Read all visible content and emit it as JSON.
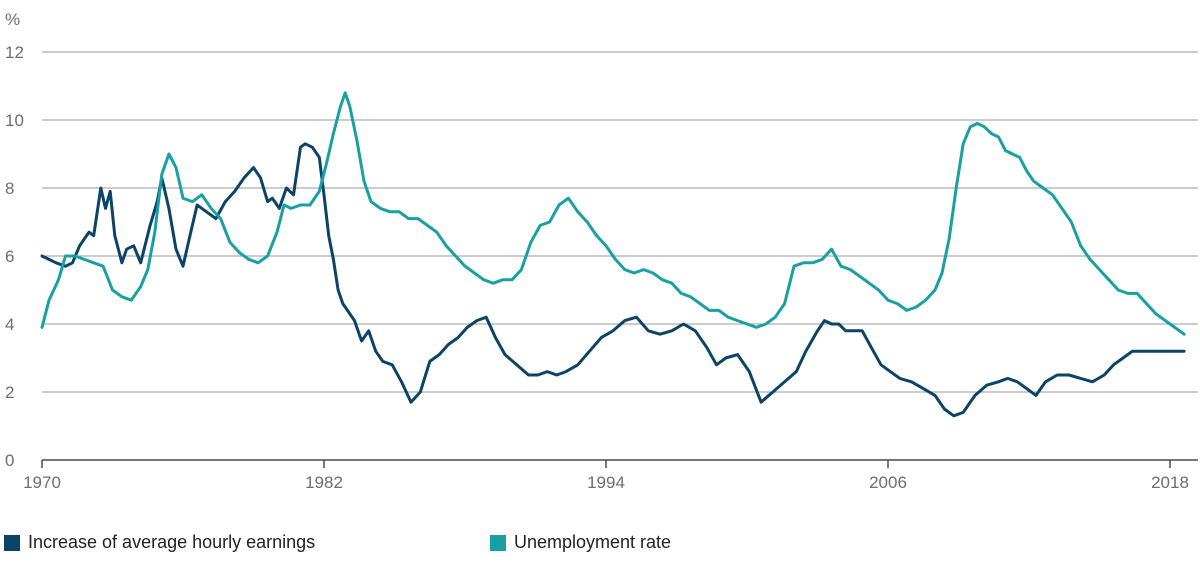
{
  "chart_data": {
    "type": "line",
    "unit_label": "%",
    "ylim": [
      0,
      12
    ],
    "y_ticks": [
      "0",
      "2",
      "4",
      "6",
      "8",
      "10",
      "12"
    ],
    "xlim": [
      1970,
      2018.6
    ],
    "x_ticks": [
      "1970",
      "1982",
      "1994",
      "2006",
      "2018"
    ],
    "grid": true,
    "legend_position": "bottom",
    "series": [
      {
        "name": "Increase of average hourly earnings",
        "color": "#0b4467",
        "x": [
          1970.0,
          1970.3,
          1970.6,
          1971.0,
          1971.3,
          1971.6,
          1971.8,
          1972.0,
          1972.2,
          1972.5,
          1972.7,
          1972.9,
          1973.1,
          1973.4,
          1973.6,
          1973.9,
          1974.2,
          1974.6,
          1974.9,
          1975.1,
          1975.4,
          1975.7,
          1976.0,
          1976.3,
          1976.6,
          1977.0,
          1977.4,
          1977.8,
          1978.2,
          1978.6,
          1979.0,
          1979.3,
          1979.6,
          1979.8,
          1980.1,
          1980.4,
          1980.7,
          1981.0,
          1981.2,
          1981.5,
          1981.8,
          1982.0,
          1982.2,
          1982.4,
          1982.6,
          1982.8,
          1983.0,
          1983.3,
          1983.6,
          1983.9,
          1984.2,
          1984.5,
          1984.9,
          1985.3,
          1985.7,
          1986.1,
          1986.5,
          1986.9,
          1987.3,
          1987.7,
          1988.1,
          1988.5,
          1988.9,
          1989.3,
          1989.7,
          1990.2,
          1990.7,
          1991.1,
          1991.5,
          1991.9,
          1992.3,
          1992.8,
          1993.3,
          1993.8,
          1994.3,
          1994.8,
          1995.3,
          1995.8,
          1996.3,
          1996.8,
          1997.3,
          1997.8,
          1998.3,
          1998.7,
          1999.1,
          1999.6,
          2000.1,
          2000.6,
          2001.1,
          2001.6,
          2002.1,
          2002.5,
          2003.0,
          2003.3,
          2003.6,
          2003.9,
          2004.2,
          2004.5,
          2004.9,
          2005.3,
          2005.7,
          2006.1,
          2006.5,
          2007.0,
          2007.5,
          2008.0,
          2008.4,
          2008.8,
          2009.2,
          2009.7,
          2010.2,
          2010.7,
          2011.1,
          2011.5,
          2011.9,
          2012.3,
          2012.7,
          2013.2,
          2013.7,
          2014.2,
          2014.7,
          2015.2,
          2015.6,
          2016.0,
          2016.4,
          2016.9,
          2017.4,
          2017.9,
          2018.3,
          2018.6
        ],
        "values": [
          6.0,
          5.9,
          5.8,
          5.7,
          5.8,
          6.3,
          6.5,
          6.7,
          6.6,
          8.0,
          7.4,
          7.9,
          6.6,
          5.8,
          6.2,
          6.3,
          5.8,
          6.9,
          7.6,
          8.3,
          7.4,
          6.2,
          5.7,
          6.6,
          7.5,
          7.3,
          7.1,
          7.6,
          7.9,
          8.3,
          8.6,
          8.3,
          7.6,
          7.7,
          7.4,
          8.0,
          7.8,
          9.2,
          9.3,
          9.2,
          8.9,
          7.8,
          6.6,
          5.9,
          5.0,
          4.6,
          4.4,
          4.1,
          3.5,
          3.8,
          3.2,
          2.9,
          2.8,
          2.3,
          1.7,
          2.0,
          2.9,
          3.1,
          3.4,
          3.6,
          3.9,
          4.1,
          4.2,
          3.6,
          3.1,
          2.8,
          2.5,
          2.5,
          2.6,
          2.5,
          2.6,
          2.8,
          3.2,
          3.6,
          3.8,
          4.1,
          4.2,
          3.8,
          3.7,
          3.8,
          4.0,
          3.8,
          3.3,
          2.8,
          3.0,
          3.1,
          2.6,
          1.7,
          2.0,
          2.3,
          2.6,
          3.2,
          3.8,
          4.1,
          4.0,
          4.0,
          3.8,
          3.8,
          3.8,
          3.3,
          2.8,
          2.6,
          2.4,
          2.3,
          2.1,
          1.9,
          1.5,
          1.3,
          1.4,
          1.9,
          2.2,
          2.3,
          2.4,
          2.3,
          2.1,
          1.9,
          2.3,
          2.5,
          2.5,
          2.4,
          2.3,
          2.5,
          2.8,
          3.0,
          3.2,
          3.2,
          3.2,
          3.2,
          3.2,
          3.2
        ]
      },
      {
        "name": "Unemployment rate",
        "color": "#1aa0a4",
        "x": [
          1970.0,
          1970.3,
          1970.7,
          1971.0,
          1971.4,
          1971.8,
          1972.2,
          1972.6,
          1973.0,
          1973.4,
          1973.8,
          1974.2,
          1974.5,
          1974.8,
          1975.1,
          1975.4,
          1975.7,
          1976.0,
          1976.4,
          1976.8,
          1977.2,
          1977.6,
          1978.0,
          1978.4,
          1978.8,
          1979.2,
          1979.6,
          1980.0,
          1980.3,
          1980.6,
          1981.0,
          1981.4,
          1981.8,
          1982.1,
          1982.4,
          1982.7,
          1982.9,
          1983.1,
          1983.4,
          1983.7,
          1984.0,
          1984.4,
          1984.8,
          1985.2,
          1985.6,
          1986.0,
          1986.4,
          1986.8,
          1987.2,
          1987.6,
          1988.0,
          1988.4,
          1988.8,
          1989.2,
          1989.6,
          1990.0,
          1990.4,
          1990.8,
          1991.2,
          1991.6,
          1992.0,
          1992.4,
          1992.8,
          1993.2,
          1993.6,
          1994.0,
          1994.4,
          1994.8,
          1995.2,
          1995.6,
          1996.0,
          1996.4,
          1996.8,
          1997.2,
          1997.6,
          1998.0,
          1998.4,
          1998.8,
          1999.2,
          1999.6,
          2000.0,
          2000.4,
          2000.8,
          2001.2,
          2001.6,
          2002.0,
          2002.4,
          2002.8,
          2003.2,
          2003.6,
          2004.0,
          2004.4,
          2004.8,
          2005.2,
          2005.6,
          2006.0,
          2006.4,
          2006.8,
          2007.2,
          2007.6,
          2008.0,
          2008.3,
          2008.6,
          2008.9,
          2009.2,
          2009.5,
          2009.8,
          2010.1,
          2010.4,
          2010.7,
          2011.0,
          2011.3,
          2011.6,
          2011.9,
          2012.2,
          2012.6,
          2013.0,
          2013.4,
          2013.8,
          2014.2,
          2014.6,
          2015.0,
          2015.4,
          2015.8,
          2016.2,
          2016.6,
          2017.0,
          2017.4,
          2017.8,
          2018.2,
          2018.6
        ],
        "values": [
          3.9,
          4.7,
          5.3,
          6.0,
          6.0,
          5.9,
          5.8,
          5.7,
          5.0,
          4.8,
          4.7,
          5.1,
          5.6,
          6.7,
          8.4,
          9.0,
          8.6,
          7.7,
          7.6,
          7.8,
          7.4,
          7.1,
          6.4,
          6.1,
          5.9,
          5.8,
          6.0,
          6.7,
          7.5,
          7.4,
          7.5,
          7.5,
          7.9,
          8.7,
          9.6,
          10.4,
          10.8,
          10.4,
          9.4,
          8.2,
          7.6,
          7.4,
          7.3,
          7.3,
          7.1,
          7.1,
          6.9,
          6.7,
          6.3,
          6.0,
          5.7,
          5.5,
          5.3,
          5.2,
          5.3,
          5.3,
          5.6,
          6.4,
          6.9,
          7.0,
          7.5,
          7.7,
          7.3,
          7.0,
          6.6,
          6.3,
          5.9,
          5.6,
          5.5,
          5.6,
          5.5,
          5.3,
          5.2,
          4.9,
          4.8,
          4.6,
          4.4,
          4.4,
          4.2,
          4.1,
          4.0,
          3.9,
          4.0,
          4.2,
          4.6,
          5.7,
          5.8,
          5.8,
          5.9,
          6.2,
          5.7,
          5.6,
          5.4,
          5.2,
          5.0,
          4.7,
          4.6,
          4.4,
          4.5,
          4.7,
          5.0,
          5.5,
          6.5,
          8.0,
          9.3,
          9.8,
          9.9,
          9.8,
          9.6,
          9.5,
          9.1,
          9.0,
          8.9,
          8.5,
          8.2,
          8.0,
          7.8,
          7.4,
          7.0,
          6.3,
          5.9,
          5.6,
          5.3,
          5.0,
          4.9,
          4.9,
          4.6,
          4.3,
          4.1,
          3.9,
          3.7
        ]
      }
    ]
  }
}
